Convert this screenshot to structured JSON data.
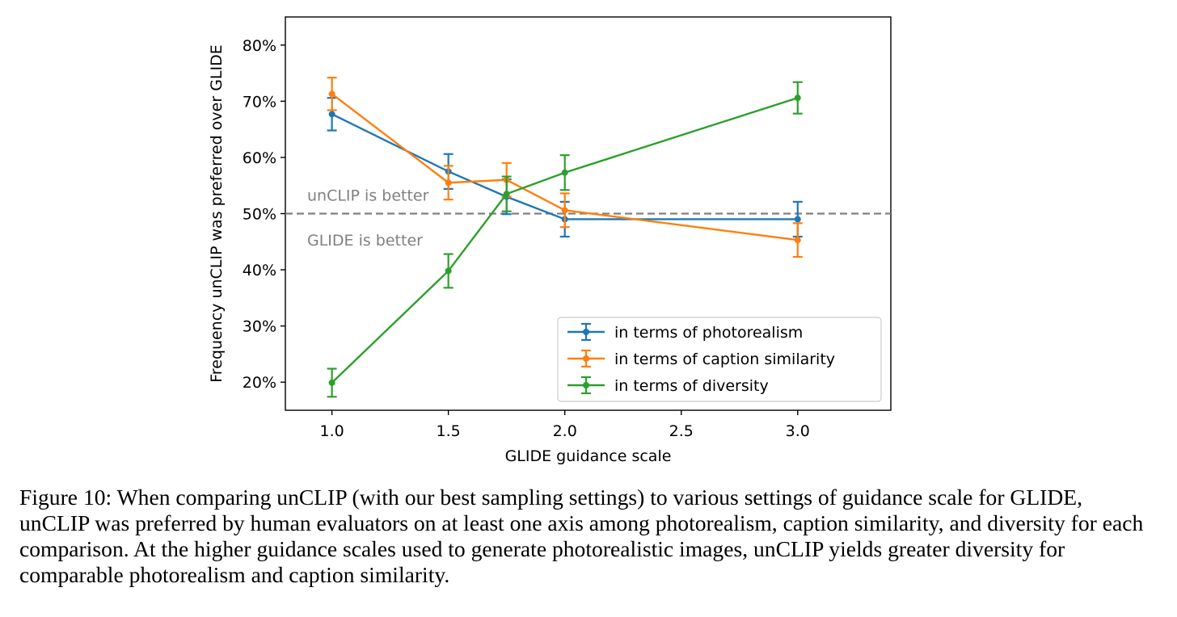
{
  "chart_data": {
    "type": "line",
    "title": "",
    "xlabel": "GLIDE guidance scale",
    "ylabel": "Frequency unCLIP was preferred over GLIDE",
    "xlim": [
      0.8,
      3.4
    ],
    "ylim": [
      15,
      85
    ],
    "xticks": [
      1.0,
      1.5,
      2.0,
      2.5,
      3.0
    ],
    "xtick_labels": [
      "1.0",
      "1.5",
      "2.0",
      "2.5",
      "3.0"
    ],
    "yticks": [
      20,
      30,
      40,
      50,
      60,
      70,
      80
    ],
    "ytick_labels": [
      "20%",
      "30%",
      "40%",
      "50%",
      "60%",
      "70%",
      "80%"
    ],
    "grid": false,
    "legend_position": "lower-right",
    "reference_line": {
      "y": 50,
      "style": "dashed",
      "color": "#808080"
    },
    "annotations": [
      {
        "text": "unCLIP is better",
        "x": 0.7,
        "y": 53.3,
        "color": "#808080"
      },
      {
        "text": "GLIDE is better",
        "x": 0.7,
        "y": 45.3,
        "color": "#808080"
      }
    ],
    "series": [
      {
        "name": "in terms of photorealism",
        "color": "#1f77b4",
        "x": [
          1.0,
          1.5,
          1.75,
          2.0,
          3.0
        ],
        "values": [
          67.7,
          57.5,
          53.0,
          49.0,
          49.0
        ],
        "errors": [
          2.9,
          3.1,
          3.1,
          3.1,
          3.1
        ]
      },
      {
        "name": "in terms of caption similarity",
        "color": "#ff7f0e",
        "x": [
          1.0,
          1.5,
          1.75,
          2.0,
          3.0
        ],
        "values": [
          71.3,
          55.5,
          56.0,
          50.6,
          45.3
        ],
        "errors": [
          2.9,
          3.0,
          3.0,
          3.0,
          3.0
        ]
      },
      {
        "name": "in terms of diversity",
        "color": "#2ca02c",
        "x": [
          1.0,
          1.5,
          1.75,
          2.0,
          3.0
        ],
        "values": [
          19.9,
          39.8,
          53.5,
          57.3,
          70.6
        ],
        "errors": [
          2.5,
          3.0,
          3.1,
          3.1,
          2.8
        ]
      }
    ]
  },
  "caption": "Figure 10: When comparing unCLIP (with our best sampling settings) to various settings of guidance scale for GLIDE, unCLIP was preferred by human evaluators on at least one axis among photorealism, caption similarity, and diversity for each comparison. At the higher guidance scales used to generate photorealistic images, unCLIP yields greater diversity for comparable photorealism and caption similarity."
}
